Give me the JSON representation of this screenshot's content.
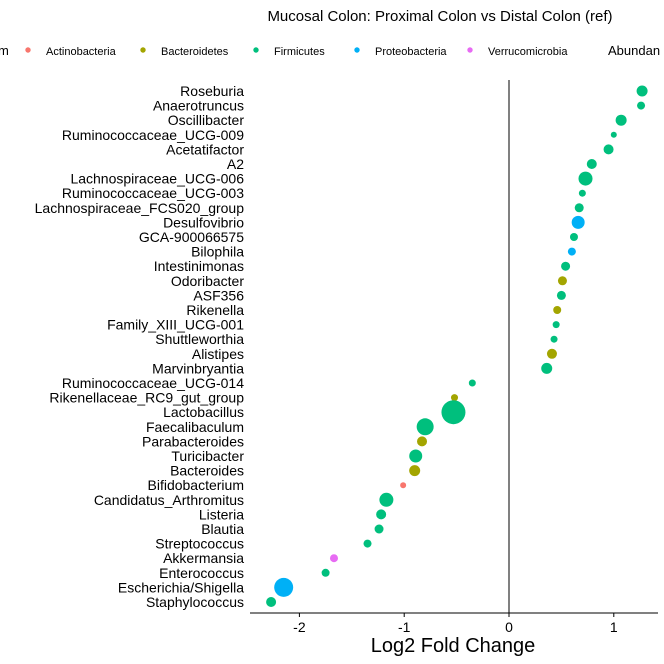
{
  "chart_data": {
    "type": "scatter",
    "title": "Mucosal Colon: Proximal Colon vs Distal Colon (ref)",
    "xlabel": "Log2 Fold Change",
    "ylabel": "",
    "xlim": [
      -2.45,
      1.45
    ],
    "xticks": [
      -2,
      -1,
      0,
      1
    ],
    "xtick_labels": [
      "-2",
      "-1",
      "0",
      "1"
    ],
    "vline_at": 0,
    "grid": false,
    "legend": {
      "placement": "top",
      "color_title_visible": "m",
      "size_title_visible": "Abundan",
      "entries": [
        {
          "name": "Actinobacteria",
          "color": "#F8766D"
        },
        {
          "name": "Bacteroidetes",
          "color": "#A3A500"
        },
        {
          "name": "Firmicutes",
          "color": "#00BF7D"
        },
        {
          "name": "Proteobacteria",
          "color": "#00B0F6"
        },
        {
          "name": "Verrucomicrobia",
          "color": "#E76BF3"
        }
      ]
    },
    "categories": [
      "Roseburia",
      "Anaerotruncus",
      "Oscillibacter",
      "Ruminococcaceae_UCG-009",
      "Acetatifactor",
      "A2",
      "Lachnospiraceae_UCG-006",
      "Ruminococcaceae_UCG-003",
      "Lachnospiraceae_FCS020_group",
      "Desulfovibrio",
      "GCA-900066575",
      "Bilophila",
      "Intestinimonas",
      "Odoribacter",
      "ASF356",
      "Rikenella",
      "Family_XIII_UCG-001",
      "Shuttleworthia",
      "Alistipes",
      "Marvinbryantia",
      "Ruminococcaceae_UCG-014",
      "Rikenellaceae_RC9_gut_group",
      "Lactobacillus",
      "Faecalibaculum",
      "Parabacteroides",
      "Turicibacter",
      "Bacteroides",
      "Bifidobacterium",
      "Candidatus_Arthromitus",
      "Listeria",
      "Blautia",
      "Streptococcus",
      "Akkermansia",
      "Enterococcus",
      "Escherichia/Shigella",
      "Staphylococcus"
    ],
    "points": [
      {
        "label": "Roseburia",
        "x": 1.27,
        "phylum": "Firmicutes",
        "size": 5.5
      },
      {
        "label": "Anaerotruncus",
        "x": 1.26,
        "phylum": "Firmicutes",
        "size": 4
      },
      {
        "label": "Oscillibacter",
        "x": 1.07,
        "phylum": "Firmicutes",
        "size": 5.5
      },
      {
        "label": "Ruminococcaceae_UCG-009",
        "x": 1.0,
        "phylum": "Firmicutes",
        "size": 3
      },
      {
        "label": "Acetatifactor",
        "x": 0.95,
        "phylum": "Firmicutes",
        "size": 5
      },
      {
        "label": "A2",
        "x": 0.79,
        "phylum": "Firmicutes",
        "size": 5
      },
      {
        "label": "Lachnospiraceae_UCG-006",
        "x": 0.73,
        "phylum": "Firmicutes",
        "size": 7
      },
      {
        "label": "Ruminococcaceae_UCG-003",
        "x": 0.7,
        "phylum": "Firmicutes",
        "size": 3.5
      },
      {
        "label": "Lachnospiraceae_FCS020_group",
        "x": 0.67,
        "phylum": "Firmicutes",
        "size": 4.5
      },
      {
        "label": "Desulfovibrio",
        "x": 0.66,
        "phylum": "Proteobacteria",
        "size": 6.5
      },
      {
        "label": "GCA-900066575",
        "x": 0.62,
        "phylum": "Firmicutes",
        "size": 4
      },
      {
        "label": "Bilophila",
        "x": 0.6,
        "phylum": "Proteobacteria",
        "size": 4
      },
      {
        "label": "Intestinimonas",
        "x": 0.54,
        "phylum": "Firmicutes",
        "size": 4.5
      },
      {
        "label": "Odoribacter",
        "x": 0.51,
        "phylum": "Bacteroidetes",
        "size": 4.5
      },
      {
        "label": "ASF356",
        "x": 0.5,
        "phylum": "Firmicutes",
        "size": 4.5
      },
      {
        "label": "Rikenella",
        "x": 0.46,
        "phylum": "Bacteroidetes",
        "size": 4
      },
      {
        "label": "Family_XIII_UCG-001",
        "x": 0.45,
        "phylum": "Firmicutes",
        "size": 3.5
      },
      {
        "label": "Shuttleworthia",
        "x": 0.43,
        "phylum": "Firmicutes",
        "size": 3.5
      },
      {
        "label": "Alistipes",
        "x": 0.41,
        "phylum": "Bacteroidetes",
        "size": 5
      },
      {
        "label": "Marvinbryantia",
        "x": 0.36,
        "phylum": "Firmicutes",
        "size": 5.5
      },
      {
        "label": "Ruminococcaceae_UCG-014",
        "x": -0.35,
        "phylum": "Firmicutes",
        "size": 3.5
      },
      {
        "label": "Rikenellaceae_RC9_gut_group",
        "x": -0.52,
        "phylum": "Bacteroidetes",
        "size": 3.5
      },
      {
        "label": "Lactobacillus",
        "x": -0.53,
        "phylum": "Firmicutes",
        "size": 12
      },
      {
        "label": "Faecalibaculum",
        "x": -0.8,
        "phylum": "Firmicutes",
        "size": 8.5
      },
      {
        "label": "Parabacteroides",
        "x": -0.83,
        "phylum": "Bacteroidetes",
        "size": 5
      },
      {
        "label": "Turicibacter",
        "x": -0.89,
        "phylum": "Firmicutes",
        "size": 6.5
      },
      {
        "label": "Bacteroides",
        "x": -0.9,
        "phylum": "Bacteroidetes",
        "size": 5.5
      },
      {
        "label": "Bifidobacterium",
        "x": -1.01,
        "phylum": "Actinobacteria",
        "size": 3
      },
      {
        "label": "Candidatus_Arthromitus",
        "x": -1.17,
        "phylum": "Firmicutes",
        "size": 7
      },
      {
        "label": "Listeria",
        "x": -1.22,
        "phylum": "Firmicutes",
        "size": 5
      },
      {
        "label": "Blautia",
        "x": -1.24,
        "phylum": "Firmicutes",
        "size": 4.5
      },
      {
        "label": "Streptococcus",
        "x": -1.35,
        "phylum": "Firmicutes",
        "size": 4
      },
      {
        "label": "Akkermansia",
        "x": -1.67,
        "phylum": "Verrucomicrobia",
        "size": 4
      },
      {
        "label": "Enterococcus",
        "x": -1.75,
        "phylum": "Firmicutes",
        "size": 4
      },
      {
        "label": "Escherichia/Shigella",
        "x": -2.15,
        "phylum": "Proteobacteria",
        "size": 9.5
      },
      {
        "label": "Staphylococcus",
        "x": -2.27,
        "phylum": "Firmicutes",
        "size": 5
      }
    ]
  }
}
